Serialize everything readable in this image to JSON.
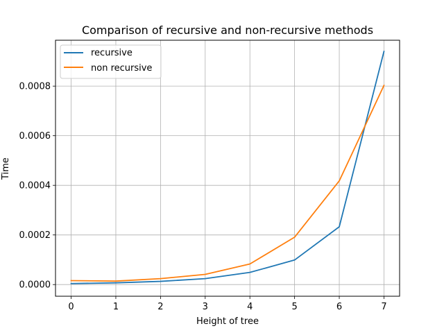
{
  "chart_data": {
    "type": "line",
    "title": "Comparison of recursive and non-recursive methods",
    "xlabel": "Height of tree",
    "ylabel": "Time",
    "x": [
      0,
      1,
      2,
      3,
      4,
      5,
      6,
      7
    ],
    "xticks": [
      "0",
      "1",
      "2",
      "3",
      "4",
      "5",
      "6",
      "7"
    ],
    "yticks": [
      {
        "value": 0.0,
        "label": "0.0000"
      },
      {
        "value": 0.0002,
        "label": "0.0002"
      },
      {
        "value": 0.0004,
        "label": "0.0004"
      },
      {
        "value": 0.0006,
        "label": "0.0006"
      },
      {
        "value": 0.0008,
        "label": "0.0008"
      }
    ],
    "xlim": [
      -0.35,
      7.35
    ],
    "ylim": [
      -4.7e-05,
      0.000985
    ],
    "grid": true,
    "legend_position": "upper-left",
    "series": [
      {
        "name": "recursive",
        "color": "#1f77b4",
        "values": [
          4e-06,
          7e-06,
          1.3e-05,
          2.4e-05,
          4.9e-05,
          9.9e-05,
          0.000233,
          0.00094
        ]
      },
      {
        "name": "non recursive",
        "color": "#ff7f0e",
        "values": [
          1.6e-05,
          1.4e-05,
          2.4e-05,
          4.1e-05,
          8.3e-05,
          0.000191,
          0.000418,
          0.000803
        ]
      }
    ]
  }
}
